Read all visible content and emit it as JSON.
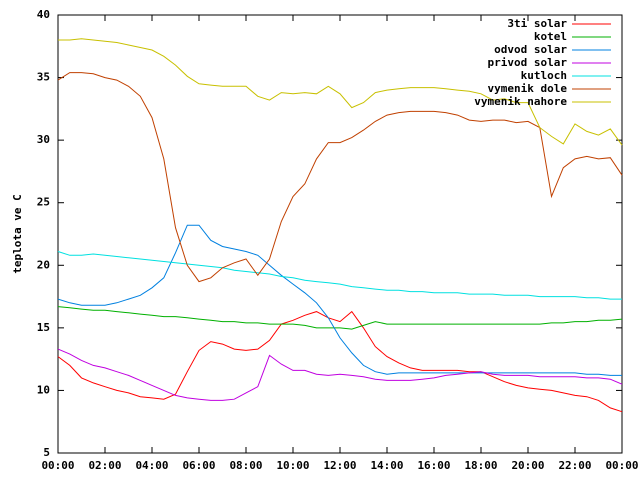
{
  "chart_data": {
    "type": "line",
    "y_label": "teplota ve C",
    "x": [
      0,
      0.5,
      1,
      1.5,
      2,
      2.5,
      3,
      3.5,
      4,
      4.5,
      5,
      5.5,
      6,
      6.5,
      7,
      7.5,
      8,
      8.5,
      9,
      9.5,
      10,
      10.5,
      11,
      11.5,
      12,
      12.5,
      13,
      13.5,
      14,
      14.5,
      15,
      15.5,
      16,
      16.5,
      17,
      17.5,
      18,
      18.5,
      19,
      19.5,
      20,
      20.5,
      21,
      21.5,
      22,
      22.5,
      23,
      23.5,
      24
    ],
    "xlim": [
      0,
      24
    ],
    "xticks": [
      {
        "value": 0,
        "label": "00:00"
      },
      {
        "value": 2,
        "label": "02:00"
      },
      {
        "value": 4,
        "label": "04:00"
      },
      {
        "value": 6,
        "label": "06:00"
      },
      {
        "value": 8,
        "label": "08:00"
      },
      {
        "value": 10,
        "label": "10:00"
      },
      {
        "value": 12,
        "label": "12:00"
      },
      {
        "value": 14,
        "label": "14:00"
      },
      {
        "value": 16,
        "label": "16:00"
      },
      {
        "value": 18,
        "label": "18:00"
      },
      {
        "value": 20,
        "label": "20:00"
      },
      {
        "value": 22,
        "label": "22:00"
      },
      {
        "value": 24,
        "label": "00:00"
      }
    ],
    "ylim": [
      5,
      40
    ],
    "yticks": [
      5,
      10,
      15,
      20,
      25,
      30,
      35,
      40
    ],
    "grid": false,
    "legend": "top-right",
    "series": [
      {
        "name": "3ti solar",
        "color": "#ff0000",
        "values": [
          12.7,
          12.0,
          11.0,
          10.6,
          10.3,
          10.0,
          9.8,
          9.5,
          9.4,
          9.3,
          9.7,
          11.5,
          13.2,
          13.9,
          13.7,
          13.3,
          13.2,
          13.3,
          14.0,
          15.3,
          15.6,
          16.0,
          16.3,
          15.8,
          15.5,
          16.3,
          15.0,
          13.5,
          12.7,
          12.2,
          11.8,
          11.6,
          11.6,
          11.6,
          11.6,
          11.5,
          11.5,
          11.1,
          10.7,
          10.4,
          10.2,
          10.1,
          10.0,
          9.8,
          9.6,
          9.5,
          9.2,
          8.6,
          8.3
        ]
      },
      {
        "name": "kotel",
        "color": "#00b000",
        "values": [
          16.7,
          16.6,
          16.5,
          16.4,
          16.4,
          16.3,
          16.2,
          16.1,
          16.0,
          15.9,
          15.9,
          15.8,
          15.7,
          15.6,
          15.5,
          15.5,
          15.4,
          15.4,
          15.3,
          15.3,
          15.3,
          15.2,
          15.0,
          15.0,
          15.0,
          14.9,
          15.2,
          15.5,
          15.3,
          15.3,
          15.3,
          15.3,
          15.3,
          15.3,
          15.3,
          15.3,
          15.3,
          15.3,
          15.3,
          15.3,
          15.3,
          15.3,
          15.4,
          15.4,
          15.5,
          15.5,
          15.6,
          15.6,
          15.7
        ]
      },
      {
        "name": "odvod solar",
        "color": "#0080e0",
        "values": [
          17.3,
          17.0,
          16.8,
          16.8,
          16.8,
          17.0,
          17.3,
          17.6,
          18.2,
          19.0,
          21.0,
          23.2,
          23.2,
          22.0,
          21.5,
          21.3,
          21.1,
          20.8,
          20.0,
          19.2,
          18.5,
          17.8,
          17.0,
          15.8,
          14.2,
          13.0,
          12.0,
          11.5,
          11.3,
          11.4,
          11.4,
          11.4,
          11.4,
          11.4,
          11.4,
          11.4,
          11.4,
          11.4,
          11.4,
          11.4,
          11.4,
          11.4,
          11.4,
          11.4,
          11.4,
          11.3,
          11.3,
          11.2,
          11.2
        ]
      },
      {
        "name": "privod solar",
        "color": "#c000e0",
        "values": [
          13.3,
          12.9,
          12.4,
          12.0,
          11.8,
          11.5,
          11.2,
          10.8,
          10.4,
          10.0,
          9.6,
          9.4,
          9.3,
          9.2,
          9.2,
          9.3,
          9.8,
          10.3,
          12.8,
          12.1,
          11.6,
          11.6,
          11.3,
          11.2,
          11.3,
          11.2,
          11.1,
          10.9,
          10.8,
          10.8,
          10.8,
          10.9,
          11.0,
          11.2,
          11.3,
          11.4,
          11.5,
          11.3,
          11.2,
          11.2,
          11.2,
          11.1,
          11.1,
          11.1,
          11.1,
          11.0,
          11.0,
          10.9,
          10.5
        ]
      },
      {
        "name": "kutloch",
        "color": "#00e0e0",
        "values": [
          21.1,
          20.8,
          20.8,
          20.9,
          20.8,
          20.7,
          20.6,
          20.5,
          20.4,
          20.3,
          20.2,
          20.1,
          20.0,
          19.9,
          19.8,
          19.6,
          19.5,
          19.4,
          19.3,
          19.1,
          19.0,
          18.8,
          18.7,
          18.6,
          18.5,
          18.3,
          18.2,
          18.1,
          18.0,
          18.0,
          17.9,
          17.9,
          17.8,
          17.8,
          17.8,
          17.7,
          17.7,
          17.7,
          17.6,
          17.6,
          17.6,
          17.5,
          17.5,
          17.5,
          17.5,
          17.4,
          17.4,
          17.3,
          17.3
        ]
      },
      {
        "name": "vymenik dole",
        "color": "#c04000",
        "values": [
          34.8,
          35.4,
          35.4,
          35.3,
          35.0,
          34.8,
          34.3,
          33.5,
          31.8,
          28.5,
          23.0,
          20.0,
          18.7,
          19.0,
          19.8,
          20.2,
          20.5,
          19.2,
          20.5,
          23.5,
          25.5,
          26.5,
          28.5,
          29.8,
          29.8,
          30.2,
          30.8,
          31.5,
          32.0,
          32.2,
          32.3,
          32.3,
          32.3,
          32.2,
          32.0,
          31.6,
          31.5,
          31.6,
          31.6,
          31.4,
          31.5,
          31.0,
          25.5,
          27.8,
          28.5,
          28.7,
          28.5,
          28.6,
          27.2
        ]
      },
      {
        "name": "vymenik nahore",
        "color": "#c8c000",
        "values": [
          38.0,
          38.0,
          38.1,
          38.0,
          37.9,
          37.8,
          37.6,
          37.4,
          37.2,
          36.7,
          36.0,
          35.1,
          34.5,
          34.4,
          34.3,
          34.3,
          34.3,
          33.5,
          33.2,
          33.8,
          33.7,
          33.8,
          33.7,
          34.3,
          33.7,
          32.6,
          33.0,
          33.8,
          34.0,
          34.1,
          34.2,
          34.2,
          34.2,
          34.1,
          34.0,
          33.9,
          33.7,
          33.2,
          33.3,
          33.0,
          33.0,
          31.0,
          30.3,
          29.7,
          31.3,
          30.7,
          30.4,
          30.9,
          29.6
        ]
      }
    ]
  }
}
